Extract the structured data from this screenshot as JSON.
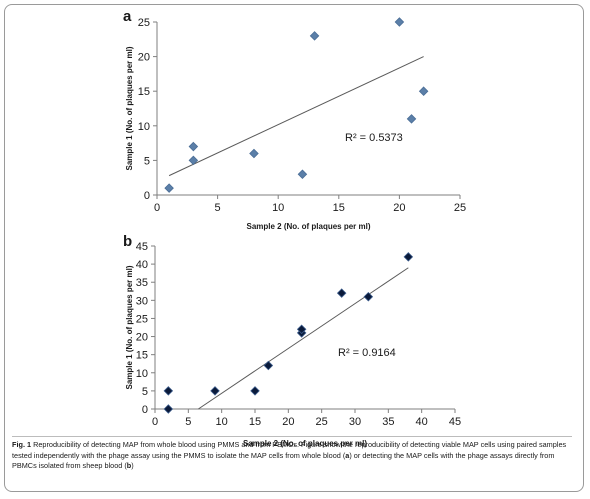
{
  "chart_data": [
    {
      "panel": "a",
      "type": "scatter",
      "xlabel": "Sample 2 (No. of plaques per ml)",
      "ylabel": "Sample 1 (No. of plaques per ml)",
      "xlim": [
        0,
        25
      ],
      "ylim": [
        0,
        25
      ],
      "xticks": [
        0,
        5,
        10,
        15,
        20,
        25
      ],
      "yticks": [
        0,
        5,
        10,
        15,
        20,
        25
      ],
      "marker": "diamond",
      "marker_color": "#5b7fa8",
      "points": [
        {
          "x": 1,
          "y": 1
        },
        {
          "x": 3,
          "y": 5
        },
        {
          "x": 3,
          "y": 7
        },
        {
          "x": 8,
          "y": 6
        },
        {
          "x": 12,
          "y": 3
        },
        {
          "x": 13,
          "y": 23
        },
        {
          "x": 20,
          "y": 25
        },
        {
          "x": 21,
          "y": 11
        },
        {
          "x": 22,
          "y": 15
        }
      ],
      "trendline": {
        "x": [
          1,
          22
        ],
        "y": [
          2.8,
          20.0
        ]
      },
      "annotation": "R² = 0.5373",
      "grid": false
    },
    {
      "panel": "b",
      "type": "scatter",
      "xlabel": "Sample 2 (No. of plaques per ml)",
      "ylabel": "Sample 1 (No. of plaques per ml)",
      "xlim": [
        0,
        45
      ],
      "ylim": [
        0,
        45
      ],
      "xticks": [
        0,
        5,
        10,
        15,
        20,
        25,
        30,
        35,
        40,
        45
      ],
      "yticks": [
        0,
        5,
        10,
        15,
        20,
        25,
        30,
        35,
        40,
        45
      ],
      "marker": "diamond",
      "marker_color": "#0a1a3a",
      "points": [
        {
          "x": 2,
          "y": 0
        },
        {
          "x": 2,
          "y": 5
        },
        {
          "x": 9,
          "y": 5
        },
        {
          "x": 15,
          "y": 5
        },
        {
          "x": 17,
          "y": 12
        },
        {
          "x": 22,
          "y": 21
        },
        {
          "x": 22,
          "y": 22
        },
        {
          "x": 28,
          "y": 32
        },
        {
          "x": 32,
          "y": 31
        },
        {
          "x": 38,
          "y": 42
        }
      ],
      "trendline": {
        "x": [
          6.5,
          38
        ],
        "y": [
          0,
          39
        ]
      },
      "annotation": "R² = 0.9164",
      "grid": false
    }
  ],
  "caption": {
    "fig_label": "Fig. 1",
    "text_1": " Reproducibility of detecting MAP from whole blood using PMMS and from PBMCs. Figure show the reproducibility of detecting viable MAP cells using paired samples tested independently with the phage assay using the PMMS to isolate the MAP cells from whole blood (",
    "ref_a": "a",
    "text_2": ") or detecting the MAP cells with the phage assays directly from PBMCs isolated from sheep blood (",
    "ref_b": "b",
    "text_3": ")"
  }
}
